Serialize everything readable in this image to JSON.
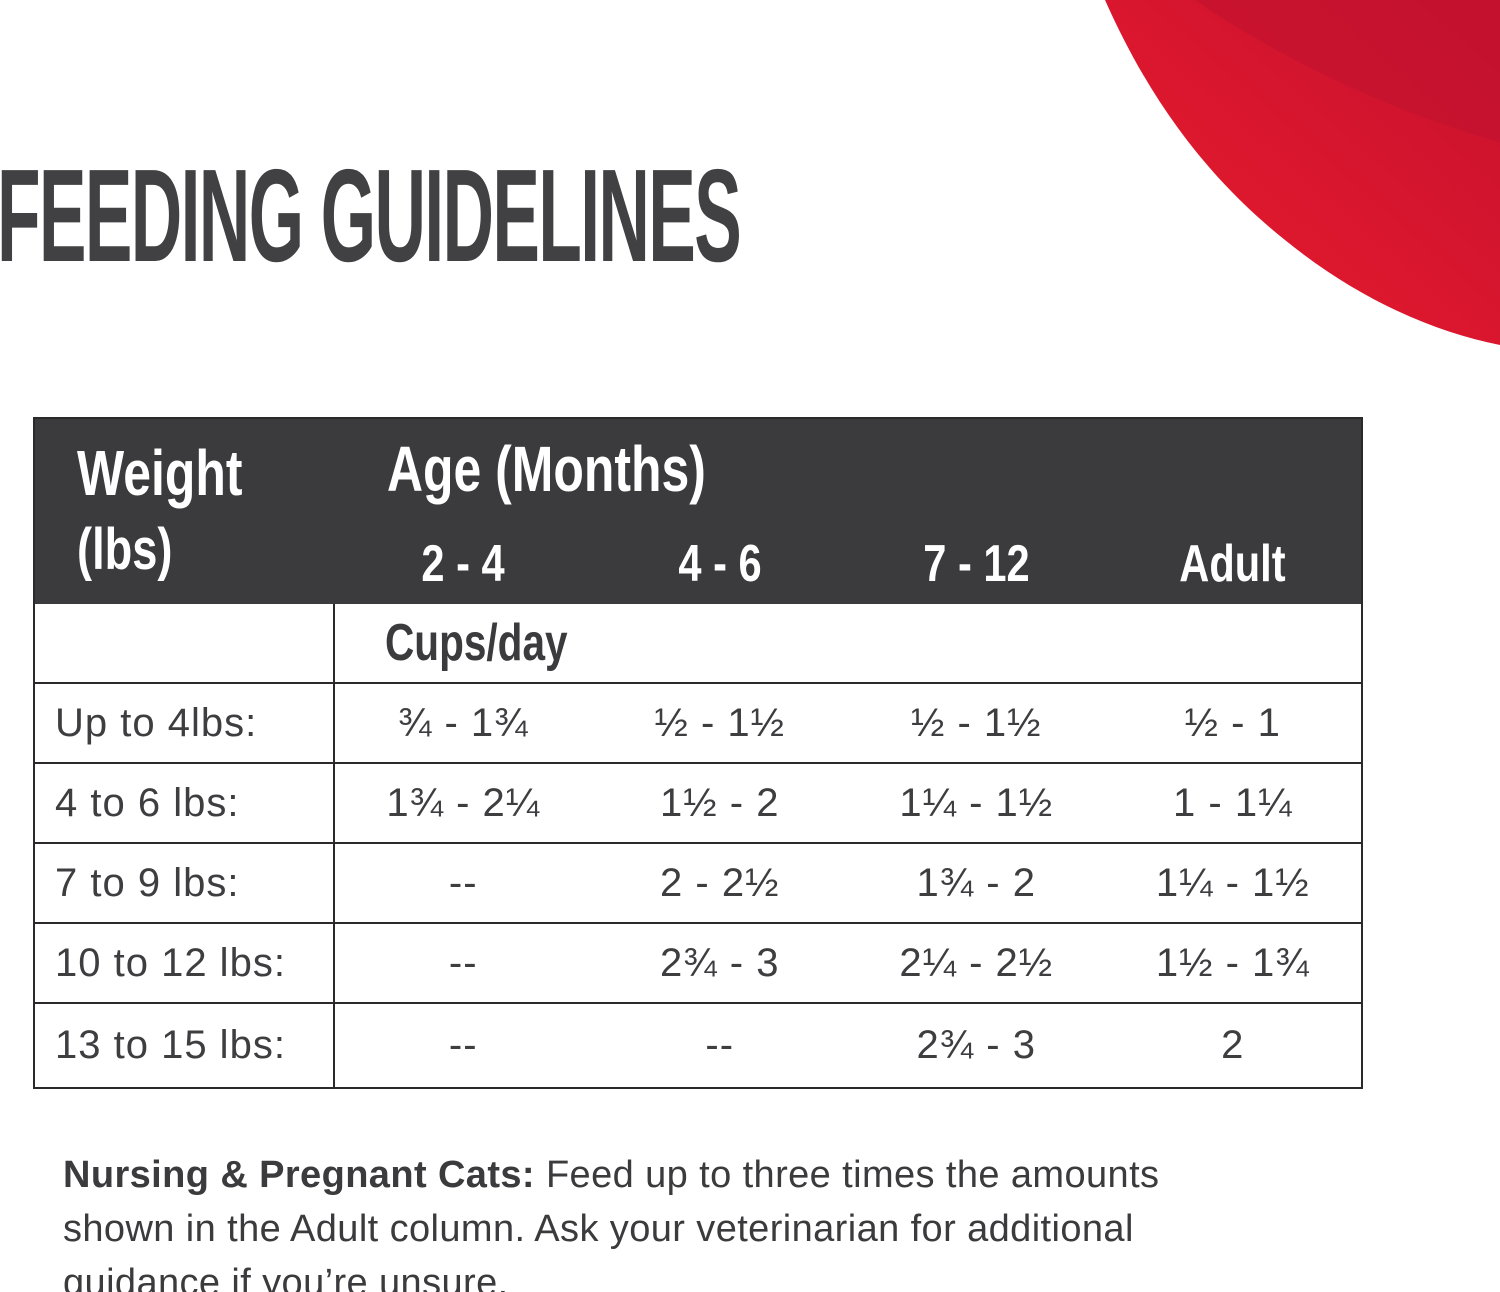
{
  "page_title": "FEEDING GUIDELINES",
  "colors": {
    "accent_red_bright": "#e6192b",
    "accent_red_dark": "#c21231",
    "header_bg": "#3b3a3c",
    "text_dark": "#414042",
    "table_border": "#2b292a"
  },
  "table": {
    "weight_header_line1": "Weight",
    "weight_header_line2": "(lbs)",
    "age_header": "Age (Months)",
    "age_columns": [
      "2 - 4",
      "4 - 6",
      "7 - 12",
      "Adult"
    ],
    "units_label": "Cups/day",
    "rows": [
      {
        "label": "Up to 4lbs:",
        "values": [
          "¾ - 1¾",
          "½ - 1½",
          "½ - 1½",
          "½ - 1"
        ]
      },
      {
        "label": "4 to 6 lbs:",
        "values": [
          "1¾ - 2¼",
          "1½ - 2",
          "1¼ - 1½",
          "1 - 1¼"
        ]
      },
      {
        "label": "7 to 9 lbs:",
        "values": [
          "--",
          "2 - 2½",
          "1¾ - 2",
          "1¼ - 1½"
        ]
      },
      {
        "label": "10 to 12 lbs:",
        "values": [
          "--",
          "2¾ - 3",
          "2¼ - 2½",
          "1½ - 1¾"
        ]
      },
      {
        "label": "13 to 15 lbs:",
        "values": [
          "--",
          "--",
          "2¾ - 3",
          "2"
        ]
      }
    ]
  },
  "note": {
    "bold_lead": "Nursing & Pregnant Cats:",
    "lines": [
      " Feed up to three times the amounts",
      "shown in the Adult column. Ask your veterinarian for additional",
      "guidance if you’re unsure."
    ]
  }
}
